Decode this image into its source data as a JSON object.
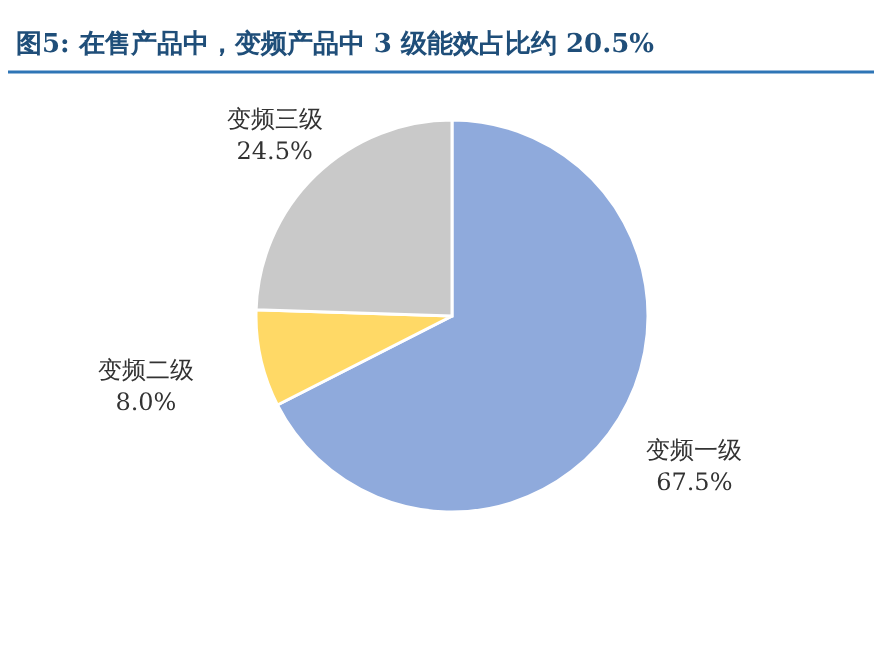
{
  "chart_data": {
    "type": "pie",
    "title": "图5: 在售产品中，变频产品中 3 级能效占比约 20.5%",
    "categories": [
      "变频一级",
      "变频二级",
      "变频三级"
    ],
    "values": [
      67.5,
      8.0,
      24.5
    ],
    "value_labels": [
      "67.5%",
      "8.0%",
      "24.5%"
    ],
    "colors": [
      "#8faadc",
      "#ffd966",
      "#c9c9c9"
    ]
  }
}
